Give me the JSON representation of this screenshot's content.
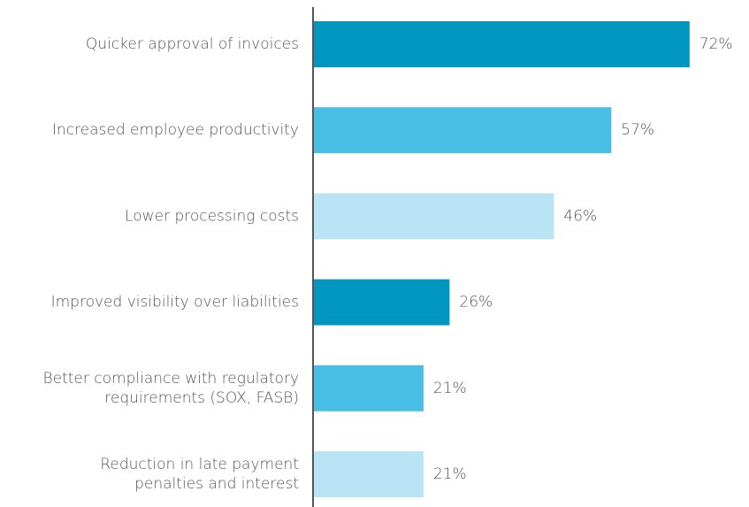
{
  "chart_data": {
    "type": "bar",
    "orientation": "horizontal",
    "categories": [
      [
        "Quicker approval of invoices"
      ],
      [
        "Increased employee productivity"
      ],
      [
        "Lower processing costs"
      ],
      [
        "Improved visibility over liabilities"
      ],
      [
        "Better compliance with regulatory",
        "requirements (SOX, FASB)"
      ],
      [
        "Reduction in late payment",
        "penalties and interest"
      ]
    ],
    "values": [
      72,
      57,
      46,
      26,
      21,
      21
    ],
    "value_labels": [
      "72%",
      "57%",
      "46%",
      "26%",
      "21%",
      "21%"
    ],
    "colors": [
      "#0096c0",
      "#48bde6",
      "#b9e4f6",
      "#0096c0",
      "#48bde6",
      "#b9e4f6"
    ]
  }
}
